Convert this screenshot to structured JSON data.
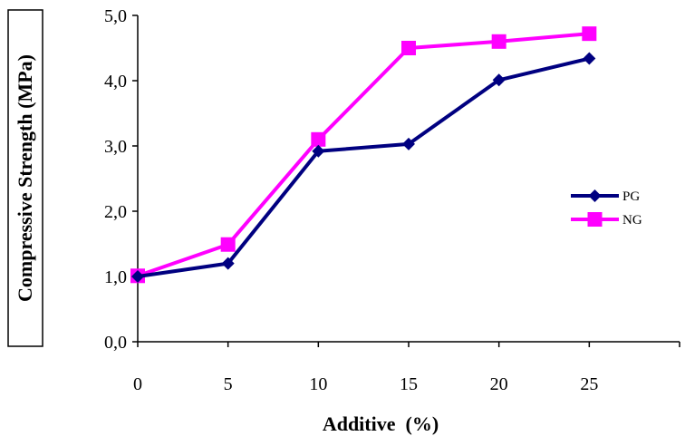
{
  "chart_data": {
    "type": "line",
    "xlabel": "Additive  (%)",
    "ylabel": "Compressive Strength (MPa)",
    "xlim": [
      0,
      30
    ],
    "ylim": [
      0,
      5
    ],
    "x_ticks": [
      0,
      5,
      10,
      15,
      20,
      25
    ],
    "x_tick_labels": [
      "0",
      "5",
      "10",
      "15",
      "20",
      "25"
    ],
    "y_ticks": [
      0,
      1,
      2,
      3,
      4,
      5
    ],
    "y_tick_labels": [
      "0,0",
      "1,0",
      "2,0",
      "3,0",
      "4,0",
      "5,0"
    ],
    "grid": false,
    "legend_position": "right",
    "series": [
      {
        "name": "PG",
        "color": "#000080",
        "marker": "diamond",
        "x": [
          0,
          5,
          10,
          15,
          20,
          25
        ],
        "y": [
          1.0,
          1.2,
          2.92,
          3.03,
          4.01,
          4.34
        ]
      },
      {
        "name": "NG",
        "color": "#FF00FF",
        "marker": "square",
        "x": [
          0,
          5,
          10,
          15,
          20,
          25
        ],
        "y": [
          1.01,
          1.49,
          3.1,
          4.5,
          4.6,
          4.72
        ]
      }
    ]
  }
}
